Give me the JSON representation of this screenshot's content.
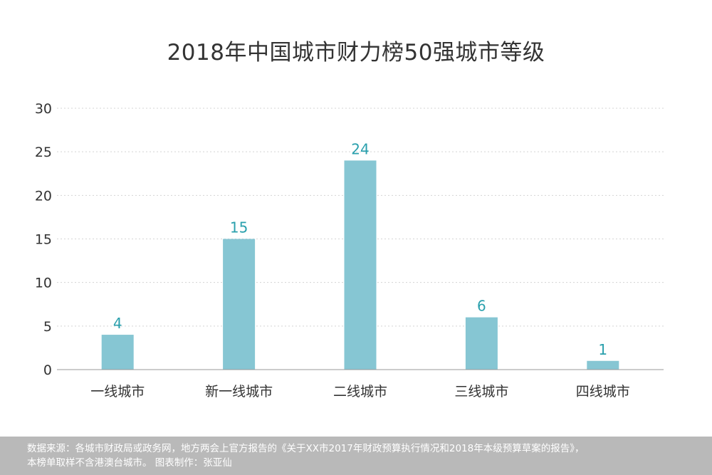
{
  "chart_data": {
    "type": "bar",
    "title": "2018年中国城市财力榜50强城市等级",
    "categories": [
      "一线城市",
      "新一线城市",
      "二线城市",
      "三线城市",
      "四线城市"
    ],
    "values": [
      4,
      15,
      24,
      6,
      1
    ],
    "ylim": [
      0,
      30
    ],
    "yticks": [
      0,
      5,
      10,
      15,
      20,
      25,
      30
    ],
    "grid": true,
    "bar_color": "#86c6d3",
    "label_color": "#2aa0ad"
  },
  "footer": {
    "line1": "数据来源：各城市财政局或政务网，地方两会上官方报告的《关于XX市2017年财政预算执行情况和2018年本级预算草案的报告》，",
    "line2": "本榜单取样不含港澳台城市。   图表制作：张亚仙"
  }
}
